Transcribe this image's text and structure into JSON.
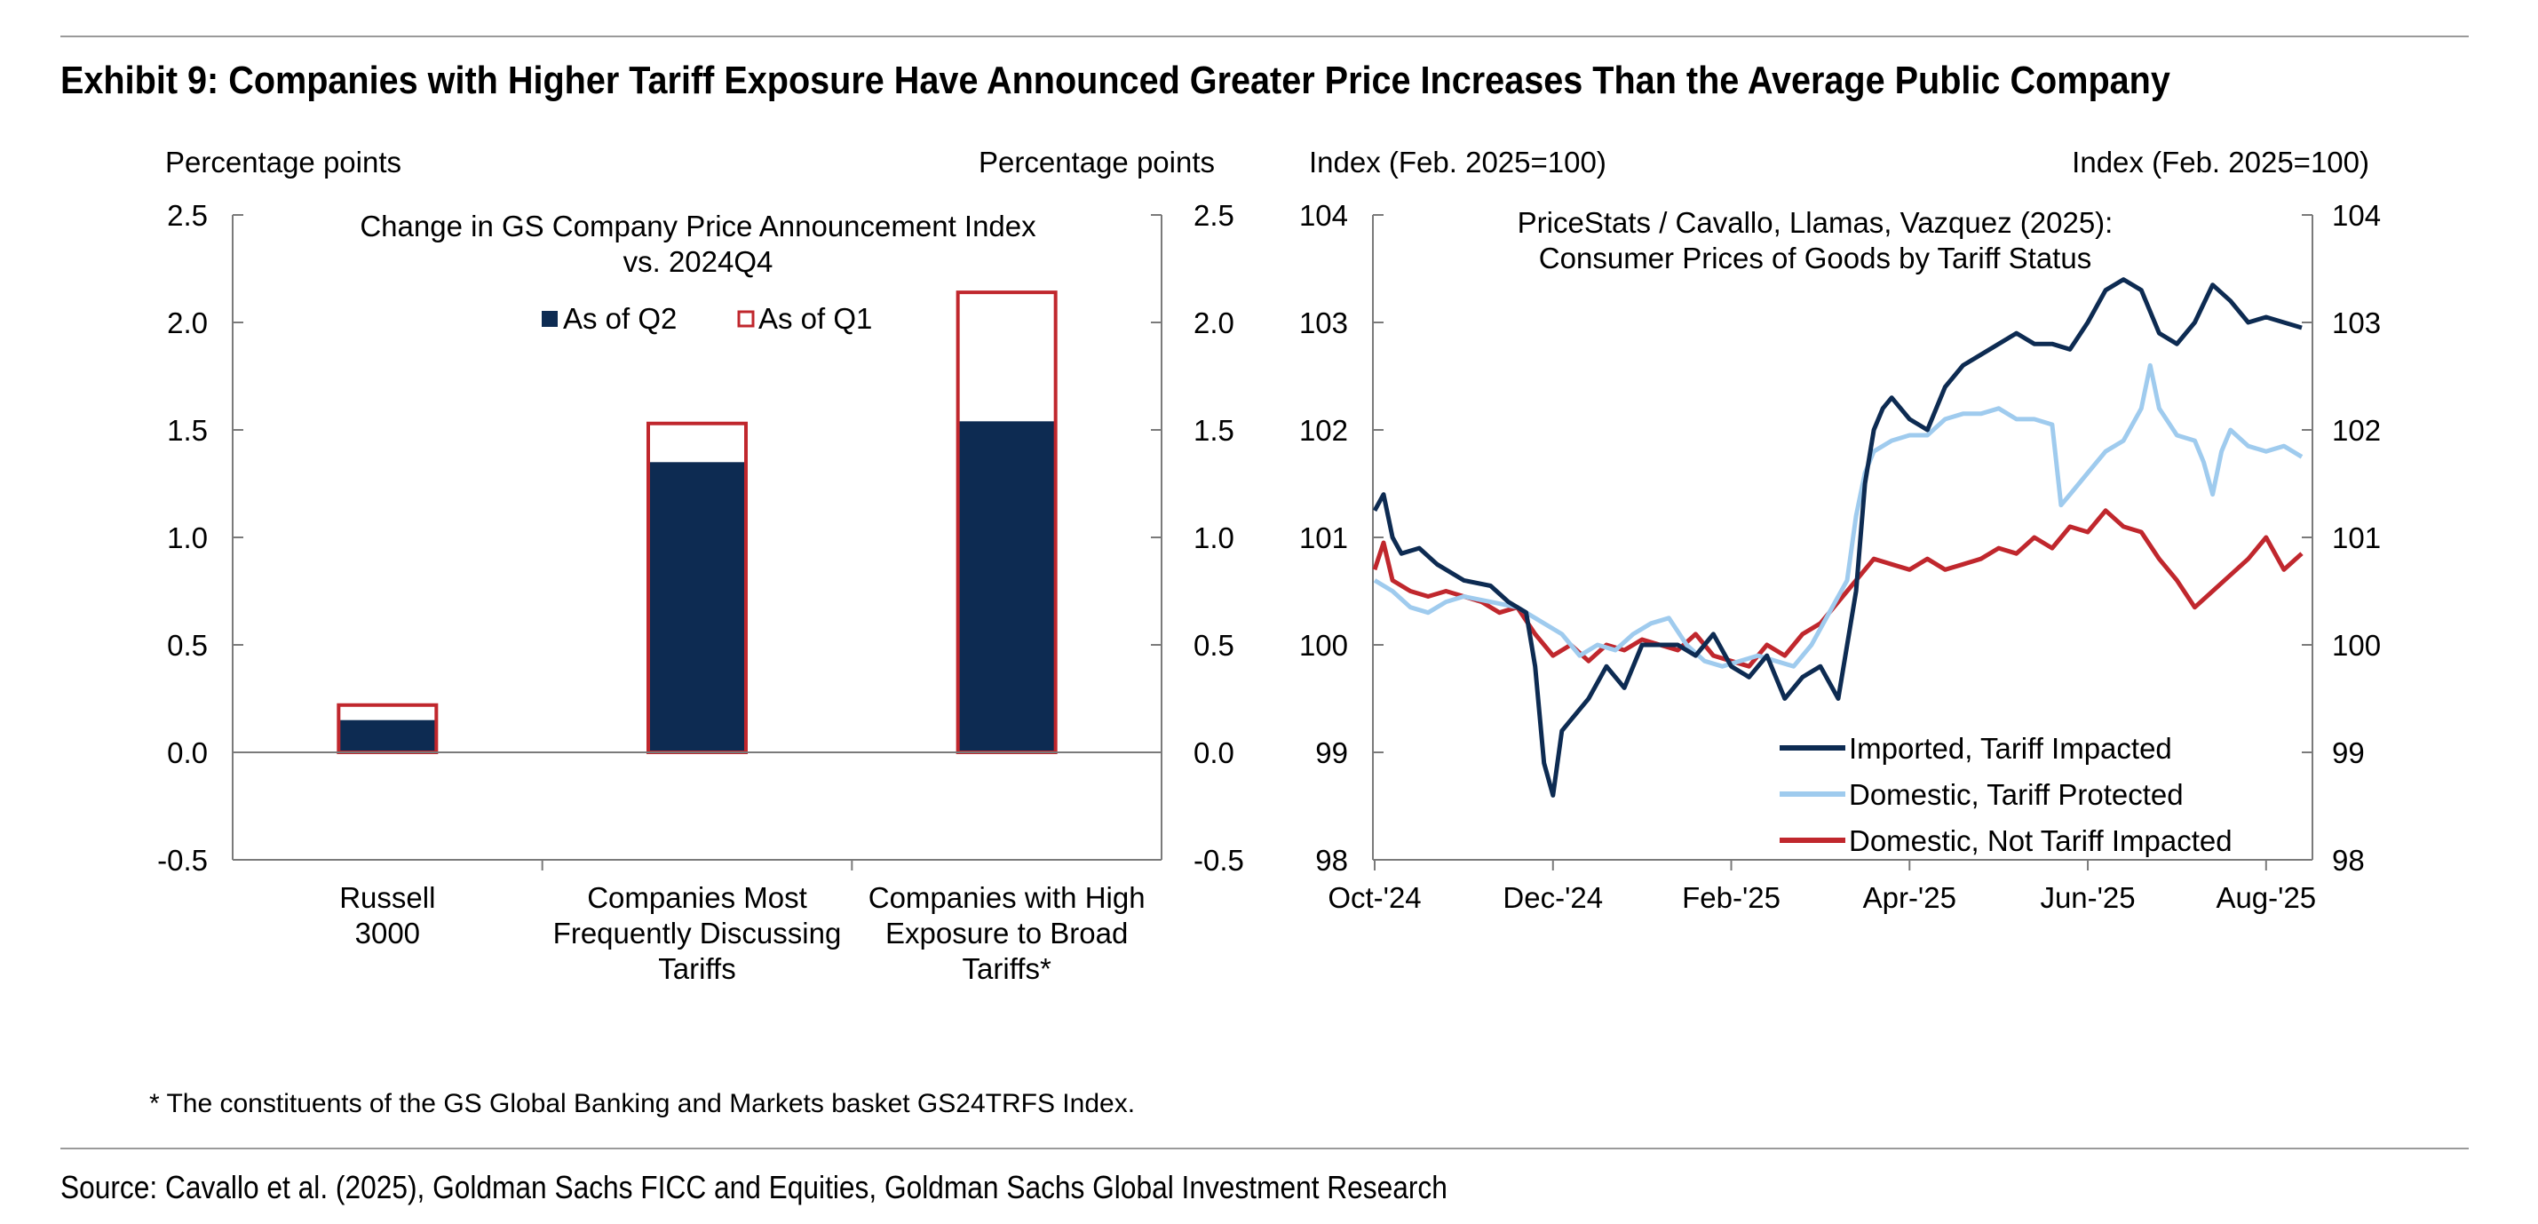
{
  "title": "Exhibit 9: Companies with Higher Tariff Exposure Have Announced Greater Price Increases Than the Average Public Company",
  "footnote": "* The constituents of the GS Global Banking and Markets basket GS24TRFS Index.",
  "source": "Source: Cavallo et al. (2025), Goldman Sachs FICC and Equities, Goldman Sachs Global Investment Research",
  "colors": {
    "navy": "#0d2b52",
    "red": "#c0272d",
    "lightblue": "#9fcbee",
    "axis": "#7a7a7a"
  },
  "chart_data": [
    {
      "type": "bar",
      "title": "Change in GS Company Price Announcement Index",
      "subtitle": "vs. 2024Q4",
      "ylabel_left": "Percentage points",
      "ylabel_right": "Percentage points",
      "ylim": [
        -0.5,
        2.5
      ],
      "yticks": [
        "2.5",
        "2.0",
        "1.5",
        "1.0",
        "0.5",
        "0.0",
        "-0.5"
      ],
      "categories": [
        [
          "Russell",
          "3000"
        ],
        [
          "Companies Most",
          "Frequently Discussing",
          "Tariffs"
        ],
        [
          "Companies with High",
          "Exposure to Broad",
          "Tariffs*"
        ]
      ],
      "series": [
        {
          "name": "As of Q2",
          "style": "filled",
          "values": [
            0.15,
            1.35,
            1.54
          ]
        },
        {
          "name": "As of Q1",
          "style": "outline",
          "values": [
            0.22,
            1.53,
            2.14
          ]
        }
      ]
    },
    {
      "type": "line",
      "title": "PriceStats / Cavallo, Llamas, Vazquez (2025):",
      "subtitle": "Consumer Prices of Goods by Tariff Status",
      "ylabel_left": "Index (Feb. 2025=100)",
      "ylabel_right": "Index (Feb. 2025=100)",
      "ylim": [
        98,
        104
      ],
      "yticks": [
        "104",
        "103",
        "102",
        "101",
        "100",
        "99",
        "98"
      ],
      "xlim": [
        0,
        10.5
      ],
      "xticks": [
        "Oct-'24",
        "Dec-'24",
        "Feb-'25",
        "Apr-'25",
        "Jun-'25",
        "Aug-'25"
      ],
      "series": [
        {
          "name": "Imported, Tariff Impacted",
          "color": "#0d2b52",
          "x": [
            0,
            0.1,
            0.2,
            0.3,
            0.5,
            0.7,
            1,
            1.3,
            1.5,
            1.7,
            1.8,
            1.9,
            2,
            2.1,
            2.2,
            2.4,
            2.6,
            2.8,
            3,
            3.2,
            3.4,
            3.6,
            3.8,
            4,
            4.2,
            4.4,
            4.6,
            4.8,
            5,
            5.2,
            5.4,
            5.5,
            5.6,
            5.7,
            5.8,
            6,
            6.2,
            6.4,
            6.6,
            6.8,
            7,
            7.2,
            7.4,
            7.6,
            7.8,
            8,
            8.2,
            8.4,
            8.6,
            8.8,
            9,
            9.2,
            9.4,
            9.6,
            9.8,
            10,
            10.2,
            10.4
          ],
          "y": [
            101.25,
            101.4,
            101.0,
            100.85,
            100.9,
            100.75,
            100.6,
            100.55,
            100.4,
            100.3,
            99.8,
            98.9,
            98.6,
            99.2,
            99.3,
            99.5,
            99.8,
            99.6,
            100.0,
            100.0,
            100.0,
            99.9,
            100.1,
            99.8,
            99.7,
            99.9,
            99.5,
            99.7,
            99.8,
            99.5,
            100.5,
            101.5,
            102.0,
            102.2,
            102.3,
            102.1,
            102.0,
            102.4,
            102.6,
            102.7,
            102.8,
            102.9,
            102.8,
            102.8,
            102.75,
            103.0,
            103.3,
            103.4,
            103.3,
            102.9,
            102.8,
            103.0,
            103.35,
            103.2,
            103.0,
            103.05,
            103.0,
            102.95
          ]
        },
        {
          "name": "Domestic, Tariff Protected",
          "color": "#9fcbee",
          "x": [
            0,
            0.2,
            0.4,
            0.6,
            0.8,
            1,
            1.3,
            1.6,
            1.9,
            2.1,
            2.3,
            2.5,
            2.7,
            2.9,
            3.1,
            3.3,
            3.5,
            3.7,
            3.9,
            4.1,
            4.3,
            4.5,
            4.7,
            4.9,
            5.1,
            5.3,
            5.4,
            5.5,
            5.6,
            5.8,
            6,
            6.2,
            6.4,
            6.6,
            6.8,
            7,
            7.2,
            7.4,
            7.6,
            7.7,
            7.8,
            8,
            8.2,
            8.4,
            8.6,
            8.7,
            8.8,
            9,
            9.2,
            9.3,
            9.4,
            9.5,
            9.6,
            9.8,
            10,
            10.2,
            10.4
          ],
          "y": [
            100.6,
            100.5,
            100.35,
            100.3,
            100.4,
            100.45,
            100.4,
            100.35,
            100.2,
            100.1,
            99.9,
            100.0,
            99.95,
            100.1,
            100.2,
            100.25,
            100.0,
            99.85,
            99.8,
            99.85,
            99.9,
            99.85,
            99.8,
            100.0,
            100.3,
            100.6,
            101.2,
            101.6,
            101.8,
            101.9,
            101.95,
            101.95,
            102.1,
            102.15,
            102.15,
            102.2,
            102.1,
            102.1,
            102.05,
            101.3,
            101.4,
            101.6,
            101.8,
            101.9,
            102.2,
            102.6,
            102.2,
            101.95,
            101.9,
            101.7,
            101.4,
            101.8,
            102.0,
            101.85,
            101.8,
            101.85,
            101.75
          ]
        },
        {
          "name": "Domestic, Not Tariff Impacted",
          "color": "#c0272d",
          "x": [
            0,
            0.1,
            0.2,
            0.4,
            0.6,
            0.8,
            1,
            1.2,
            1.4,
            1.6,
            1.8,
            2,
            2.2,
            2.4,
            2.6,
            2.8,
            3,
            3.2,
            3.4,
            3.6,
            3.8,
            4,
            4.2,
            4.4,
            4.6,
            4.8,
            5,
            5.2,
            5.4,
            5.6,
            5.8,
            6,
            6.2,
            6.4,
            6.6,
            6.8,
            7,
            7.2,
            7.4,
            7.6,
            7.8,
            8,
            8.2,
            8.4,
            8.6,
            8.8,
            9,
            9.2,
            9.4,
            9.6,
            9.8,
            10,
            10.2,
            10.4
          ],
          "y": [
            100.7,
            100.95,
            100.6,
            100.5,
            100.45,
            100.5,
            100.45,
            100.4,
            100.3,
            100.35,
            100.1,
            99.9,
            100.0,
            99.85,
            100.0,
            99.95,
            100.05,
            100.0,
            99.95,
            100.1,
            99.9,
            99.85,
            99.8,
            100.0,
            99.9,
            100.1,
            100.2,
            100.4,
            100.6,
            100.8,
            100.75,
            100.7,
            100.8,
            100.7,
            100.75,
            100.8,
            100.9,
            100.85,
            101.0,
            100.9,
            101.1,
            101.05,
            101.25,
            101.1,
            101.05,
            100.8,
            100.6,
            100.35,
            100.5,
            100.65,
            100.8,
            101.0,
            100.7,
            100.85
          ]
        }
      ]
    }
  ]
}
